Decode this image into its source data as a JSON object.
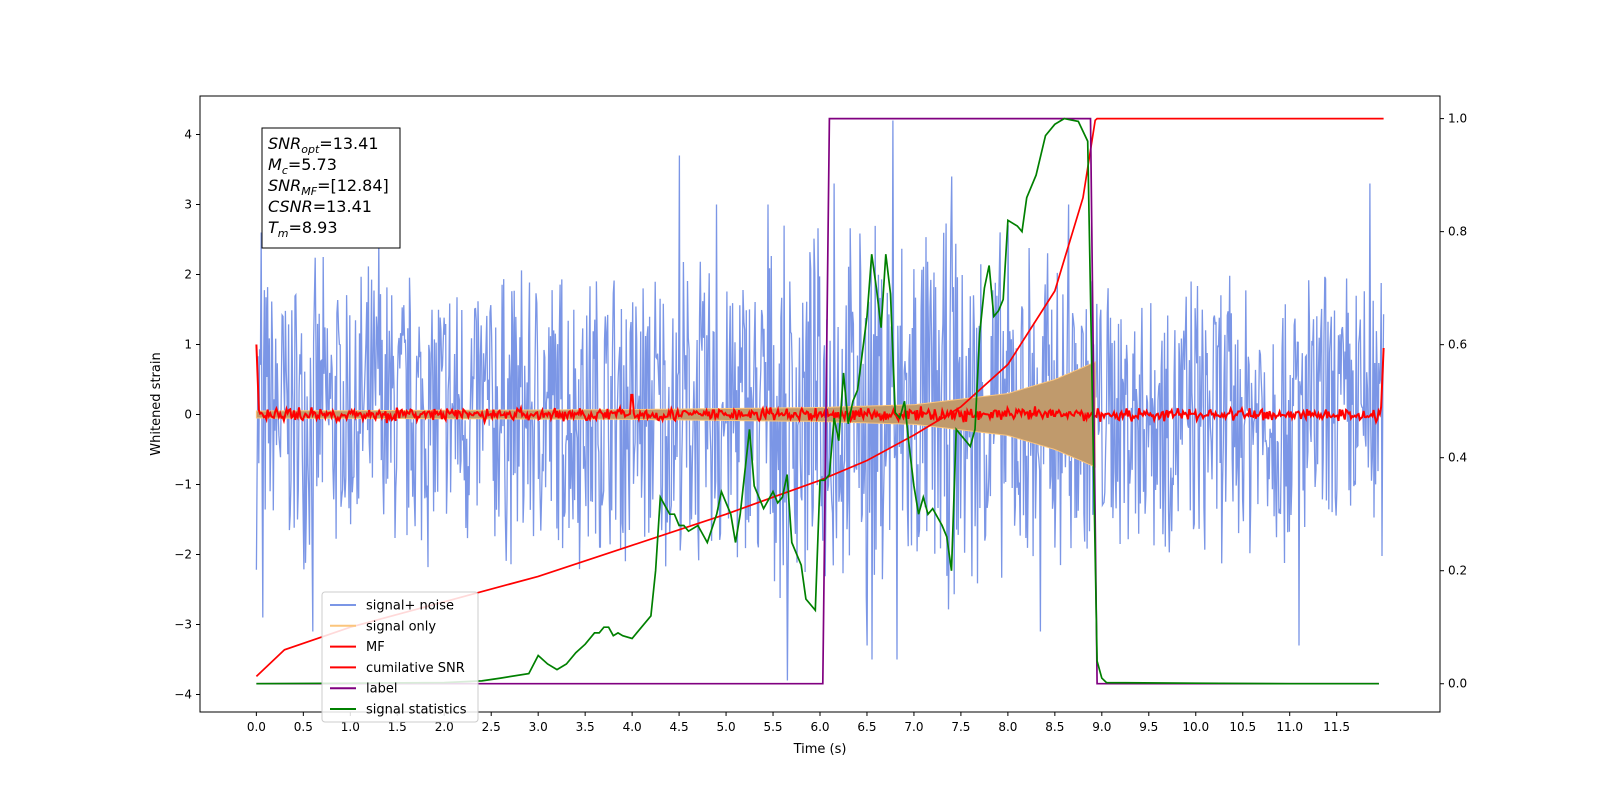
{
  "chart_data": {
    "type": "line",
    "xlabel": "Time (s)",
    "ylabel": "Whitened strain",
    "xlim": [
      -0.6,
      12.6
    ],
    "ylim": [
      -4.25,
      4.55
    ],
    "y2lim": [
      -0.05,
      1.04
    ],
    "x_ticks": [
      "0.0",
      "0.5",
      "1.0",
      "1.5",
      "2.0",
      "2.5",
      "3.0",
      "3.5",
      "4.0",
      "4.5",
      "5.0",
      "5.5",
      "6.0",
      "6.5",
      "7.0",
      "7.5",
      "8.0",
      "8.5",
      "9.0",
      "9.5",
      "10.0",
      "10.5",
      "11.0",
      "11.5"
    ],
    "y_ticks": [
      "−4",
      "−3",
      "−2",
      "−1",
      "0",
      "1",
      "2",
      "3",
      "4"
    ],
    "y2_ticks": [
      "0.0",
      "0.2",
      "0.4",
      "0.6",
      "0.8",
      "1.0"
    ],
    "grid": false,
    "legend_position": "lower-left",
    "annotation": [
      {
        "sym": "SNR",
        "sub": "opt",
        "val": "=13.41"
      },
      {
        "sym": "M",
        "sub": "c",
        "val": "=5.73"
      },
      {
        "sym": "SNR",
        "sub": "MF",
        "val": "=[12.84]"
      },
      {
        "sym": "CSNR",
        "sub": "",
        "val": "=13.41"
      },
      {
        "sym": "T",
        "sub": "m",
        "val": "=8.93"
      }
    ],
    "series": [
      {
        "name": "signal+ noise",
        "axis": "left",
        "color": "#7b96e6",
        "kind": "noise",
        "t_range": [
          0,
          12
        ],
        "envelope": [
          [
            0,
            2.3
          ],
          [
            3,
            2.4
          ],
          [
            5,
            2.5
          ],
          [
            6.2,
            2.9
          ],
          [
            6.8,
            3.1
          ],
          [
            8.9,
            2.7
          ],
          [
            9,
            2.2
          ],
          [
            12,
            2.3
          ]
        ],
        "spikes": [
          [
            0.05,
            2.6
          ],
          [
            0.07,
            -2.9
          ],
          [
            0.6,
            -3.1
          ],
          [
            1.3,
            2.5
          ],
          [
            4.5,
            3.7
          ],
          [
            4.9,
            3.0
          ],
          [
            5.45,
            3.0
          ],
          [
            5.65,
            -3.8
          ],
          [
            6.15,
            3.3
          ],
          [
            6.5,
            -3.3
          ],
          [
            6.55,
            -3.5
          ],
          [
            6.78,
            4.2
          ],
          [
            6.82,
            -3.5
          ],
          [
            7.4,
            3.4
          ],
          [
            8.35,
            -3.1
          ],
          [
            8.65,
            3.0
          ],
          [
            11.1,
            -3.3
          ],
          [
            11.85,
            3.3
          ]
        ]
      },
      {
        "name": "signal only",
        "axis": "left",
        "color": "#fbc57c",
        "fill": "#c09a6c",
        "kind": "chirp",
        "t_range": [
          0,
          8.93
        ],
        "amplitude": [
          [
            0,
            0.05
          ],
          [
            4,
            0.07
          ],
          [
            6,
            0.1
          ],
          [
            7,
            0.14
          ],
          [
            8,
            0.3
          ],
          [
            8.5,
            0.5
          ],
          [
            8.93,
            0.75
          ]
        ]
      },
      {
        "name": "MF",
        "axis": "left",
        "color": "#ff0000",
        "kind": "mf",
        "t_range": [
          0,
          12
        ],
        "start_value": 1.0,
        "end_value": 0.95,
        "noise_amp": 0.09
      },
      {
        "name": "cumilative SNR",
        "axis": "right",
        "color": "#ff0000",
        "kind": "line",
        "points": [
          [
            0,
            0.013
          ],
          [
            0.3,
            0.06
          ],
          [
            1,
            0.1
          ],
          [
            2,
            0.145
          ],
          [
            3,
            0.19
          ],
          [
            4,
            0.245
          ],
          [
            5,
            0.3
          ],
          [
            5.5,
            0.33
          ],
          [
            6,
            0.36
          ],
          [
            6.5,
            0.395
          ],
          [
            7,
            0.44
          ],
          [
            7.5,
            0.49
          ],
          [
            8,
            0.565
          ],
          [
            8.5,
            0.695
          ],
          [
            8.8,
            0.86
          ],
          [
            8.93,
            0.997
          ],
          [
            8.95,
            1.0
          ],
          [
            12,
            1.0
          ]
        ]
      },
      {
        "name": "label",
        "axis": "right",
        "color": "#800080",
        "kind": "line",
        "points": [
          [
            0,
            0
          ],
          [
            6.03,
            0
          ],
          [
            6.1,
            1
          ],
          [
            8.88,
            1
          ],
          [
            8.95,
            0
          ],
          [
            11.95,
            0
          ]
        ]
      },
      {
        "name": "signal statistics",
        "axis": "right",
        "color": "#008000",
        "kind": "line",
        "points": [
          [
            0,
            0
          ],
          [
            1,
            0.001
          ],
          [
            2,
            0.002
          ],
          [
            2.4,
            0.005
          ],
          [
            2.6,
            0.01
          ],
          [
            2.9,
            0.018
          ],
          [
            3.0,
            0.05
          ],
          [
            3.1,
            0.035
          ],
          [
            3.2,
            0.025
          ],
          [
            3.3,
            0.035
          ],
          [
            3.4,
            0.055
          ],
          [
            3.5,
            0.07
          ],
          [
            3.6,
            0.09
          ],
          [
            3.65,
            0.09
          ],
          [
            3.7,
            0.1
          ],
          [
            3.75,
            0.1
          ],
          [
            3.8,
            0.085
          ],
          [
            3.85,
            0.09
          ],
          [
            3.9,
            0.085
          ],
          [
            4.0,
            0.08
          ],
          [
            4.1,
            0.1
          ],
          [
            4.2,
            0.12
          ],
          [
            4.25,
            0.2
          ],
          [
            4.3,
            0.33
          ],
          [
            4.4,
            0.3
          ],
          [
            4.45,
            0.3
          ],
          [
            4.5,
            0.28
          ],
          [
            4.55,
            0.28
          ],
          [
            4.6,
            0.27
          ],
          [
            4.7,
            0.28
          ],
          [
            4.8,
            0.25
          ],
          [
            4.9,
            0.3
          ],
          [
            4.95,
            0.34
          ],
          [
            5.0,
            0.32
          ],
          [
            5.05,
            0.3
          ],
          [
            5.1,
            0.25
          ],
          [
            5.15,
            0.3
          ],
          [
            5.25,
            0.45
          ],
          [
            5.3,
            0.35
          ],
          [
            5.35,
            0.33
          ],
          [
            5.4,
            0.31
          ],
          [
            5.5,
            0.34
          ],
          [
            5.55,
            0.32
          ],
          [
            5.6,
            0.33
          ],
          [
            5.65,
            0.37
          ],
          [
            5.7,
            0.25
          ],
          [
            5.8,
            0.21
          ],
          [
            5.85,
            0.15
          ],
          [
            5.95,
            0.13
          ],
          [
            6.0,
            0.36
          ],
          [
            6.05,
            0.36
          ],
          [
            6.1,
            0.37
          ],
          [
            6.15,
            0.47
          ],
          [
            6.2,
            0.43
          ],
          [
            6.25,
            0.55
          ],
          [
            6.3,
            0.46
          ],
          [
            6.35,
            0.5
          ],
          [
            6.4,
            0.52
          ],
          [
            6.5,
            0.65
          ],
          [
            6.55,
            0.76
          ],
          [
            6.6,
            0.7
          ],
          [
            6.65,
            0.63
          ],
          [
            6.7,
            0.76
          ],
          [
            6.75,
            0.69
          ],
          [
            6.8,
            0.48
          ],
          [
            6.85,
            0.47
          ],
          [
            6.9,
            0.5
          ],
          [
            6.95,
            0.42
          ],
          [
            7.0,
            0.35
          ],
          [
            7.05,
            0.3
          ],
          [
            7.1,
            0.33
          ],
          [
            7.15,
            0.3
          ],
          [
            7.2,
            0.31
          ],
          [
            7.3,
            0.28
          ],
          [
            7.35,
            0.26
          ],
          [
            7.4,
            0.2
          ],
          [
            7.45,
            0.45
          ],
          [
            7.5,
            0.44
          ],
          [
            7.55,
            0.43
          ],
          [
            7.6,
            0.42
          ],
          [
            7.65,
            0.45
          ],
          [
            7.7,
            0.62
          ],
          [
            7.75,
            0.7
          ],
          [
            7.8,
            0.74
          ],
          [
            7.85,
            0.65
          ],
          [
            7.9,
            0.66
          ],
          [
            7.95,
            0.68
          ],
          [
            8.0,
            0.82
          ],
          [
            8.1,
            0.81
          ],
          [
            8.15,
            0.8
          ],
          [
            8.2,
            0.86
          ],
          [
            8.3,
            0.9
          ],
          [
            8.4,
            0.97
          ],
          [
            8.5,
            0.99
          ],
          [
            8.6,
            1.0
          ],
          [
            8.75,
            0.995
          ],
          [
            8.85,
            0.96
          ],
          [
            8.9,
            0.5
          ],
          [
            8.95,
            0.04
          ],
          [
            9.0,
            0.01
          ],
          [
            9.05,
            0.002
          ],
          [
            10,
            0.001
          ],
          [
            11,
            0.0
          ],
          [
            11.95,
            0.0
          ]
        ]
      }
    ]
  }
}
